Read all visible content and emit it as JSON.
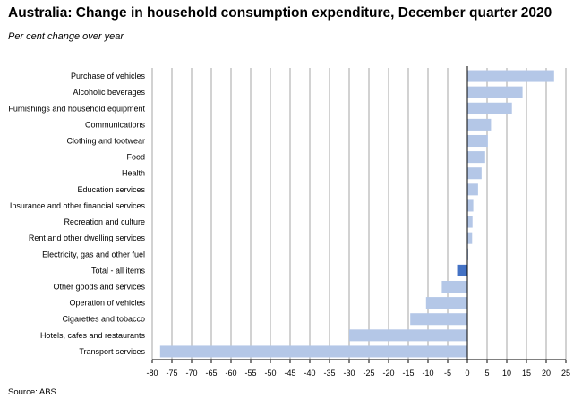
{
  "header": {
    "title": "Australia: Change in household consumption expenditure, December quarter 2020",
    "subtitle": "Per cent change over year"
  },
  "footer": {
    "source": "Source: ABS"
  },
  "colors": {
    "bar": "#b4c7e7",
    "highlight_bar": "#4472c4",
    "grid": "#808080",
    "axis": "#000000"
  },
  "chart_data": {
    "type": "bar",
    "orientation": "horizontal",
    "title": "Australia: Change in household consumption expenditure, December quarter 2020",
    "subtitle": "Per cent change over year",
    "categories": [
      "Purchase of vehicles",
      "Alcoholic beverages",
      "Furnishings and household equipment",
      "Communications",
      "Clothing and footwear",
      "Food",
      "Health",
      "Education services",
      "Insurance and other financial services",
      "Recreation and culture",
      "Rent and other dwelling services",
      "Electricity, gas and other fuel",
      "Total - all items",
      "Other goods and services",
      "Operation of vehicles",
      "Cigarettes and tobacco",
      "Hotels, cafes and restaurants",
      "Transport services"
    ],
    "values": [
      22,
      14,
      11.3,
      6,
      5.2,
      4.5,
      3.6,
      2.7,
      1.5,
      1.3,
      1.2,
      0.1,
      -2.6,
      -6.5,
      -10.5,
      -14.5,
      -30,
      -78
    ],
    "highlight": [
      "Total - all items"
    ],
    "xlim": [
      -80,
      25
    ],
    "xticks": [
      -80,
      -75,
      -70,
      -65,
      -60,
      -55,
      -50,
      -45,
      -40,
      -35,
      -30,
      -25,
      -20,
      -15,
      -10,
      -5,
      0,
      5,
      10,
      15,
      20,
      25
    ],
    "grid": "vertical",
    "legend": "none"
  }
}
